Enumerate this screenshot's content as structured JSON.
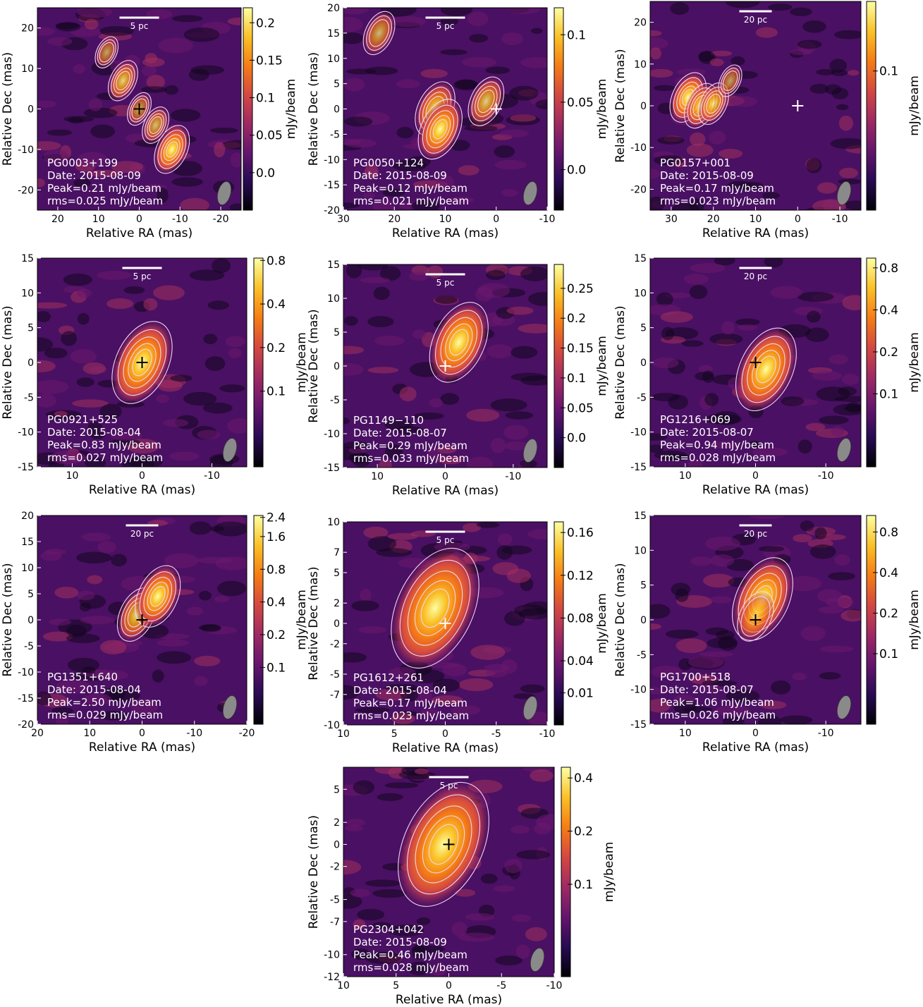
{
  "axes": {
    "xlabel": "Relative RA (mas)",
    "ylabel": "Relative Dec (mas)"
  },
  "colorbar_label": "mJy/beam",
  "colors": {
    "beam": "#8a8a8a",
    "contour": "#f2d6ee",
    "neg_contour": "#c0142a",
    "colormap": [
      "#000004",
      "#280b54",
      "#65156e",
      "#9f2a63",
      "#d44842",
      "#f57d15",
      "#fac127",
      "#fcffa4"
    ]
  },
  "panels": [
    {
      "source": "PG0003+199",
      "date": "Date: 2015-08-09",
      "peak": "Peak=0.21 mJy/beam",
      "rms": "rms=0.025 mJy/beam",
      "scalebar": "5 pc",
      "xlim": [
        25,
        -25
      ],
      "ylim": [
        -25,
        25
      ],
      "xticks": [
        "20",
        "10",
        "0",
        "-10",
        "-20"
      ],
      "yticks": [
        "-20",
        "-10",
        "0",
        "10",
        "20"
      ],
      "cbticks": [
        "0.0",
        "0.05",
        "0.1",
        "0.15",
        "0.2"
      ],
      "cbscale": "linear",
      "cbrange": [
        -0.05,
        0.22
      ],
      "marker": "black",
      "components": [
        {
          "x": 0,
          "y": 0,
          "flux": 0.09
        },
        {
          "x": 4,
          "y": 7,
          "flux": 0.15
        },
        {
          "x": -4,
          "y": -4,
          "flux": 0.12
        },
        {
          "x": -8,
          "y": -10,
          "flux": 0.21
        },
        {
          "x": 8,
          "y": 14,
          "flux": 0.08
        }
      ]
    },
    {
      "source": "PG0050+124",
      "date": "Date: 2015-08-09",
      "peak": "Peak=0.12 mJy/beam",
      "rms": "rms=0.021 mJy/beam",
      "scalebar": "5 pc",
      "xlim": [
        30,
        -10
      ],
      "ylim": [
        -20,
        20
      ],
      "xticks": [
        "30",
        "20",
        "10",
        "0",
        "-10"
      ],
      "yticks": [
        "-20",
        "-15",
        "-10",
        "-5",
        "0",
        "5",
        "10",
        "15",
        "20"
      ],
      "cbticks": [
        "0.0",
        "0.05",
        "0.1"
      ],
      "cbscale": "linear",
      "cbrange": [
        -0.03,
        0.12
      ],
      "marker": "white",
      "components": [
        {
          "x": 12,
          "y": 0,
          "flux": 0.1
        },
        {
          "x": 11,
          "y": -4,
          "flux": 0.12
        },
        {
          "x": 2,
          "y": 1.5,
          "flux": 0.08
        },
        {
          "x": 23,
          "y": 15,
          "flux": 0.06
        }
      ]
    },
    {
      "source": "PG0157+001",
      "date": "Date: 2015-08-09",
      "peak": "Peak=0.17 mJy/beam",
      "rms": "rms=0.023 mJy/beam",
      "scalebar": "20 pc",
      "xlim": [
        35,
        -15
      ],
      "ylim": [
        -25,
        25
      ],
      "xticks": [
        "30",
        "20",
        "10",
        "0",
        "-10"
      ],
      "yticks": [
        "-20",
        "-10",
        "0",
        "10",
        "20"
      ],
      "cbticks": [
        "0.1"
      ],
      "cbscale": "linear",
      "cbrange": [
        -0.04,
        0.17
      ],
      "marker": "white",
      "components": [
        {
          "x": 26,
          "y": 2,
          "flux": 0.17
        },
        {
          "x": 23,
          "y": 0,
          "flux": 0.14
        },
        {
          "x": 20,
          "y": 0.5,
          "flux": 0.12
        },
        {
          "x": 16,
          "y": 6,
          "flux": 0.06
        }
      ]
    },
    {
      "source": "PG0921+525",
      "date": "Date: 2015-08-04",
      "peak": "Peak=0.83 mJy/beam",
      "rms": "rms=0.027 mJy/beam",
      "scalebar": "5 pc",
      "xlim": [
        15,
        -15
      ],
      "ylim": [
        -15,
        15
      ],
      "xticks": [
        "10",
        "0",
        "-10"
      ],
      "yticks": [
        "-15",
        "-10",
        "-5",
        "0",
        "5",
        "10",
        "15"
      ],
      "cbticks": [
        "0.1",
        "0.2",
        "0.4",
        "0.8"
      ],
      "cbscale": "log",
      "cbrange": [
        0.03,
        0.83
      ],
      "marker": "black",
      "components": [
        {
          "x": 0,
          "y": 0,
          "flux": 0.83
        }
      ]
    },
    {
      "source": "PG1149−110",
      "date": "Date: 2015-08-07",
      "peak": "Peak=0.29 mJy/beam",
      "rms": "rms=0.033 mJy/beam",
      "scalebar": "5 pc",
      "xlim": [
        15,
        -15
      ],
      "ylim": [
        -15,
        15
      ],
      "xticks": [
        "10",
        "0",
        "-10"
      ],
      "yticks": [
        "-15",
        "-10",
        "-5",
        "0",
        "5",
        "10",
        "15"
      ],
      "cbticks": [
        "0.0",
        "0.05",
        "0.1",
        "0.15",
        "0.2",
        "0.25"
      ],
      "cbscale": "linear",
      "cbrange": [
        -0.05,
        0.29
      ],
      "marker": "white",
      "components": [
        {
          "x": -2,
          "y": 3.5,
          "flux": 0.29
        }
      ]
    },
    {
      "source": "PG1216+069",
      "date": "Date: 2015-08-07",
      "peak": "Peak=0.94 mJy/beam",
      "rms": "rms=0.028 mJy/beam",
      "scalebar": "20 pc",
      "xlim": [
        15,
        -15
      ],
      "ylim": [
        -15,
        15
      ],
      "xticks": [
        "10",
        "0",
        "-10"
      ],
      "yticks": [
        "-15",
        "-10",
        "-5",
        "0",
        "5",
        "10",
        "15"
      ],
      "cbticks": [
        "0.1",
        "0.2",
        "0.4",
        "0.8"
      ],
      "cbscale": "log",
      "cbrange": [
        0.03,
        0.94
      ],
      "marker": "black",
      "components": [
        {
          "x": -1.5,
          "y": -1,
          "flux": 0.94
        }
      ]
    },
    {
      "source": "PG1351+640",
      "date": "Date: 2015-08-04",
      "peak": "Peak=2.50 mJy/beam",
      "rms": "rms=0.029 mJy/beam",
      "scalebar": "20 pc",
      "xlim": [
        20,
        -20
      ],
      "ylim": [
        -20,
        20
      ],
      "xticks": [
        "20",
        "10",
        "0",
        "-10",
        "-20"
      ],
      "yticks": [
        "-20",
        "-15",
        "-10",
        "-5",
        "0",
        "5",
        "10",
        "15",
        "20"
      ],
      "cbticks": [
        "0.1",
        "0.2",
        "0.4",
        "0.8",
        "1.6",
        "2.4"
      ],
      "cbscale": "log",
      "cbrange": [
        0.03,
        2.5
      ],
      "marker": "black",
      "components": [
        {
          "x": 1,
          "y": 1,
          "flux": 1.9
        },
        {
          "x": -3,
          "y": 4.5,
          "flux": 2.5
        }
      ]
    },
    {
      "source": "PG1612+261",
      "date": "Date: 2015-08-04",
      "peak": "Peak=0.17 mJy/beam",
      "rms": "rms=0.023 mJy/beam",
      "scalebar": "5 pc",
      "xlim": [
        10,
        -10
      ],
      "ylim": [
        -10,
        10
      ],
      "xticks": [
        "10",
        "5",
        "0",
        "-5",
        "-10"
      ],
      "yticks": [
        "-10",
        "-7",
        "-5",
        "-2",
        "0",
        "2",
        "5",
        "7",
        "10"
      ],
      "cbticks": [
        "0.01",
        "0.04",
        "0.08",
        "0.12",
        "0.16"
      ],
      "cbscale": "linear",
      "cbrange": [
        -0.02,
        0.17
      ],
      "marker": "white",
      "components": [
        {
          "x": 1,
          "y": 1.5,
          "flux": 0.17
        }
      ]
    },
    {
      "source": "PG1700+518",
      "date": "Date: 2015-08-07",
      "peak": "Peak=1.06 mJy/beam",
      "rms": "rms=0.026 mJy/beam",
      "scalebar": "20 pc",
      "xlim": [
        15,
        -15
      ],
      "ylim": [
        -15,
        15
      ],
      "xticks": [
        "10",
        "0",
        "-10"
      ],
      "yticks": [
        "-15",
        "-10",
        "-5",
        "0",
        "5",
        "10",
        "15"
      ],
      "cbticks": [
        "0.1",
        "0.2",
        "0.4",
        "0.8"
      ],
      "cbscale": "log",
      "cbrange": [
        0.03,
        1.06
      ],
      "marker": "black",
      "components": [
        {
          "x": -1,
          "y": 3,
          "flux": 1.06
        },
        {
          "x": 0,
          "y": 0.5,
          "flux": 0.3
        }
      ]
    },
    {
      "source": "PG2304+042",
      "date": "Date: 2015-08-09",
      "peak": "Peak=0.46 mJy/beam",
      "rms": "rms=0.028 mJy/beam",
      "scalebar": "5 pc",
      "xlim": [
        10,
        -10
      ],
      "ylim": [
        -12,
        7
      ],
      "xticks": [
        "10",
        "5",
        "0",
        "-5",
        "-10"
      ],
      "yticks": [
        "-12",
        "-10",
        "-7",
        "-5",
        "-2",
        "0",
        "2",
        "5"
      ],
      "cbticks": [
        "0.1",
        "0.2",
        "0.4"
      ],
      "cbscale": "log",
      "cbrange": [
        0.03,
        0.46
      ],
      "marker": "black",
      "components": [
        {
          "x": 0.5,
          "y": 0,
          "flux": 0.46
        }
      ]
    }
  ]
}
